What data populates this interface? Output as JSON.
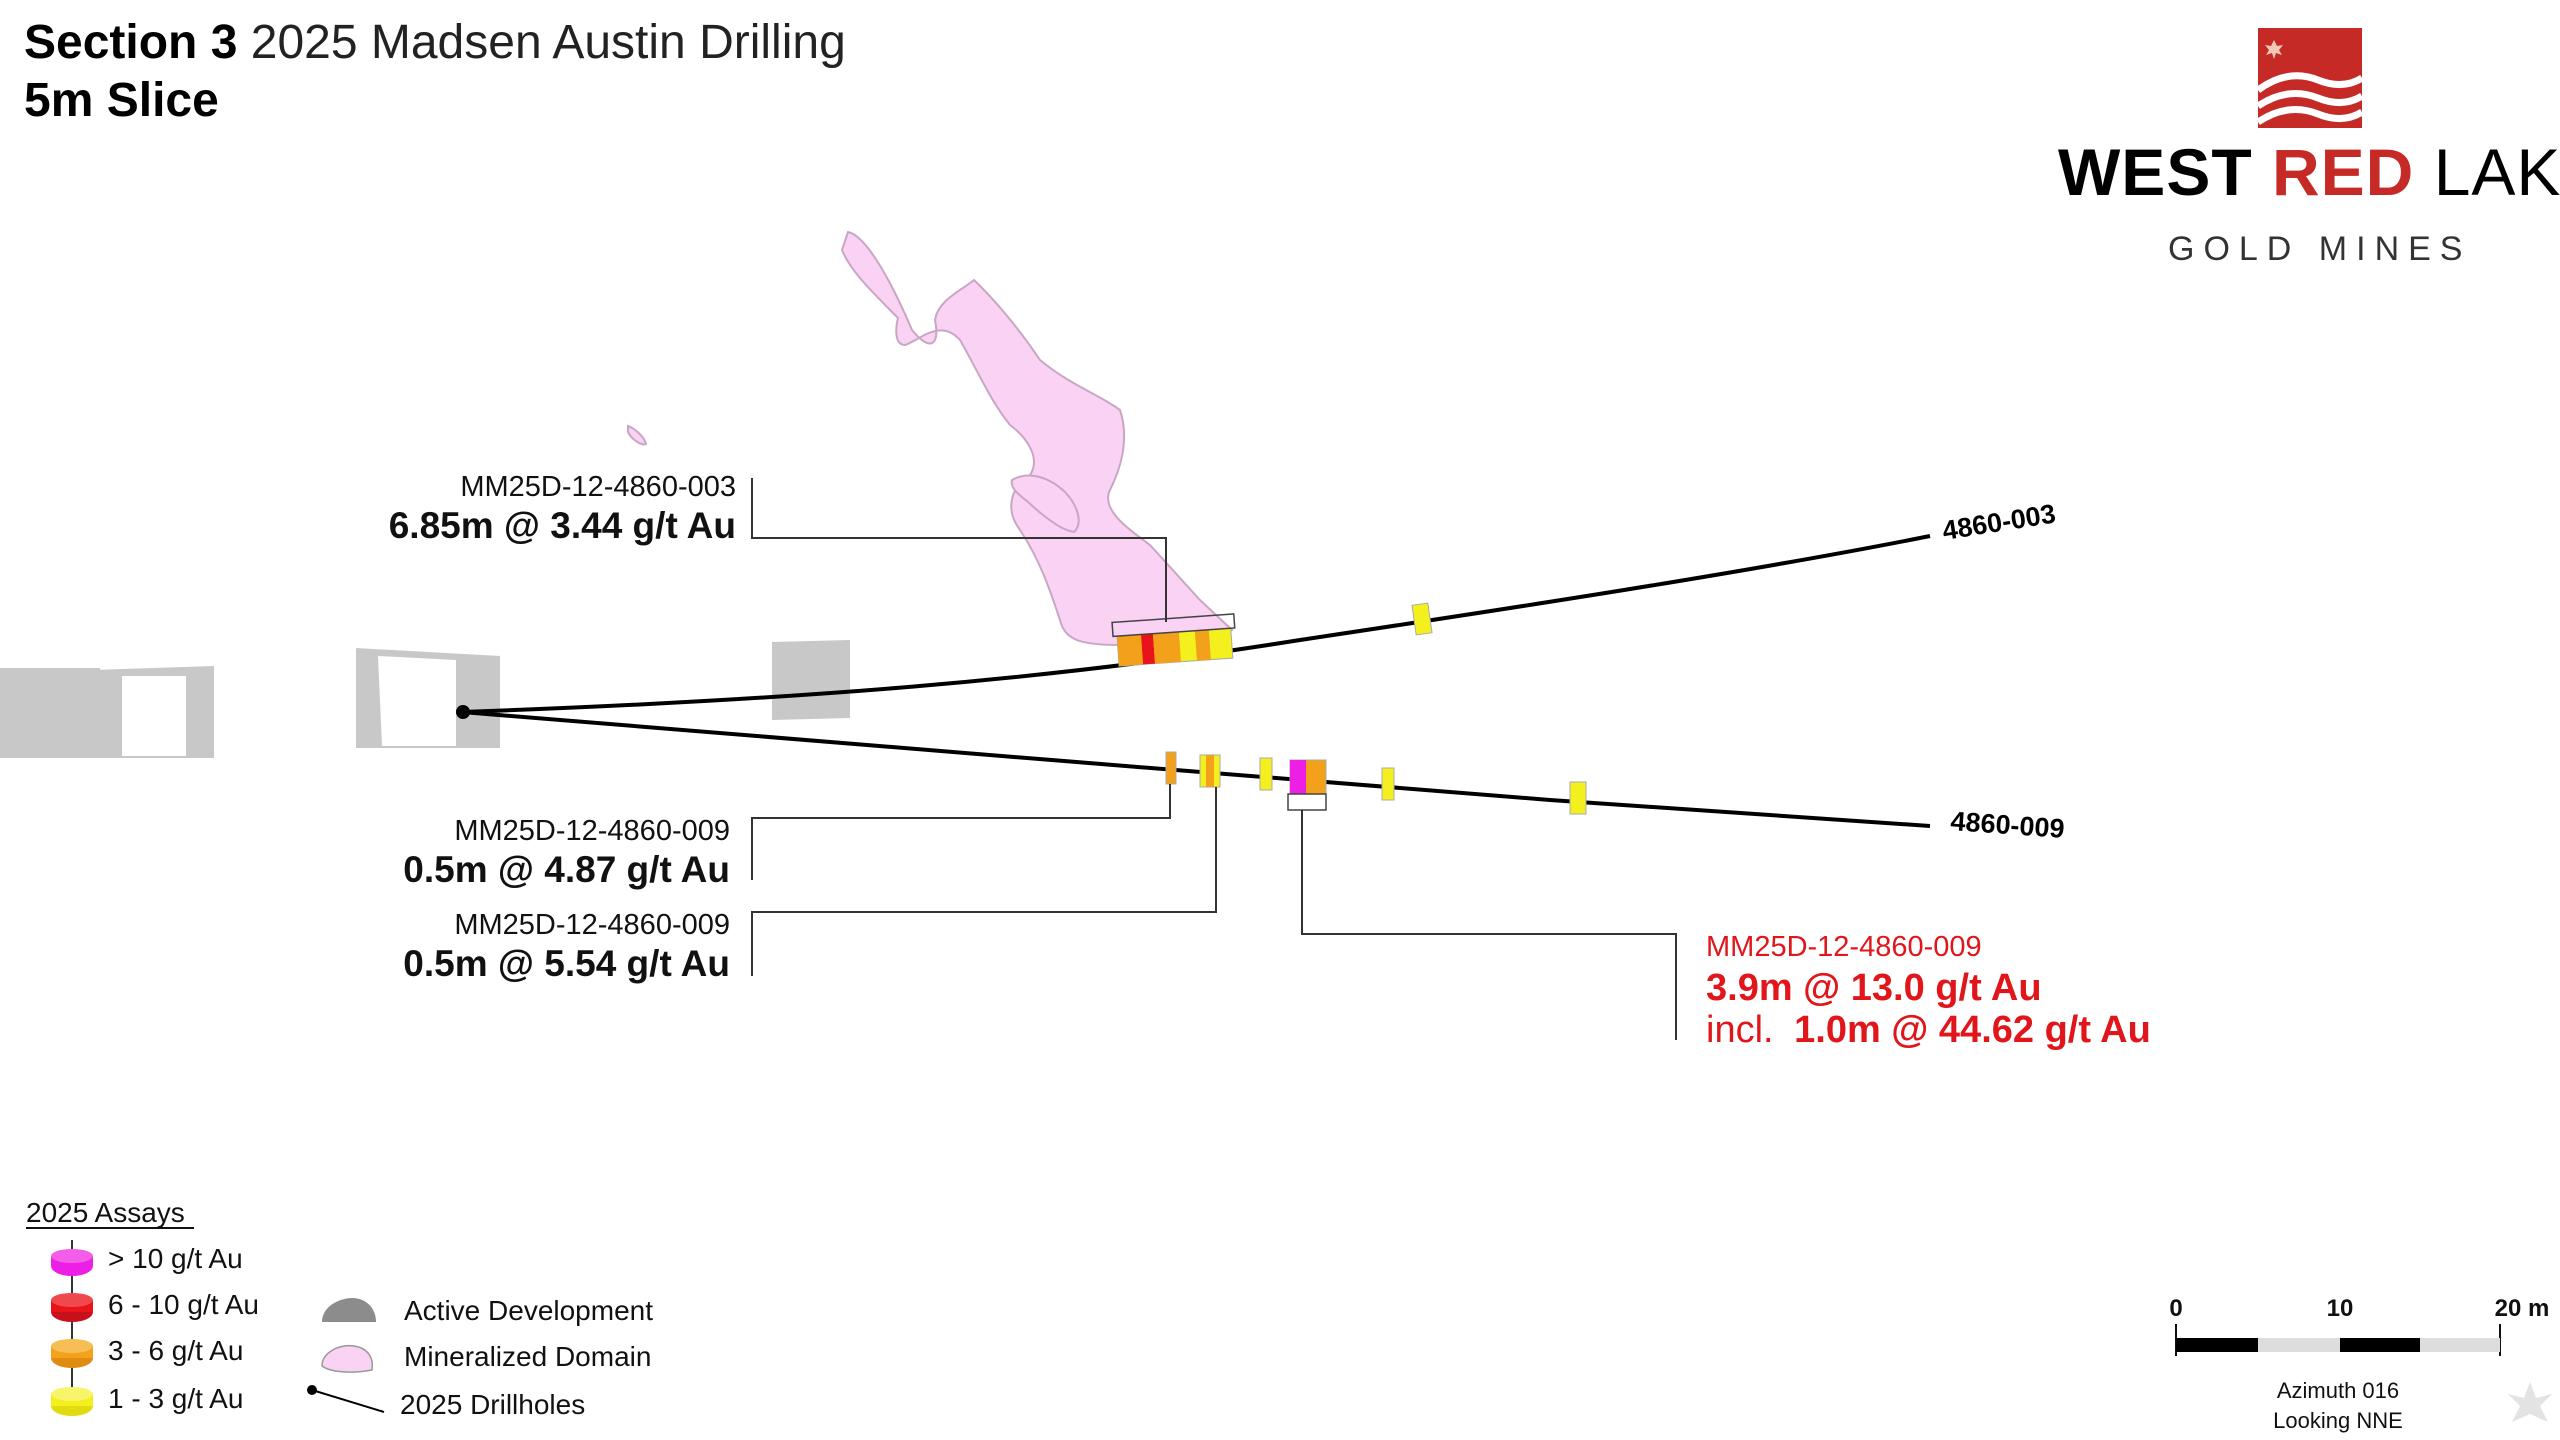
{
  "header": {
    "section_label": "Section 3",
    "title_rest": "2025 Madsen Austin Drilling",
    "subtitle": "5m Slice"
  },
  "logo": {
    "word_west": "WEST",
    "word_red": "RED",
    "word_lake": "LAKE",
    "word_gold": "GOLD MINES",
    "brand_color": "#c62a27"
  },
  "drillholes": [
    {
      "id": "4860-003",
      "label": "4860-003"
    },
    {
      "id": "4860-009",
      "label": "4860-009"
    }
  ],
  "callouts": [
    {
      "hole": "MM25D-12-4860-003",
      "result": "6.85m @ 3.44 g/t Au",
      "color": "#000000"
    },
    {
      "hole": "MM25D-12-4860-009",
      "result": "0.5m @ 4.87 g/t Au",
      "color": "#000000"
    },
    {
      "hole": "MM25D-12-4860-009",
      "result": "0.5m @ 5.54 g/t Au",
      "color": "#000000"
    },
    {
      "hole": "MM25D-12-4860-009",
      "result": "3.9m @ 13.0 g/t Au",
      "incl_prefix": "incl.",
      "incl_result": "1.0m @ 44.62 g/t Au",
      "color": "#e0161b"
    }
  ],
  "legend": {
    "title": "2025 Assays",
    "assays": [
      {
        "label": "> 10 g/t Au",
        "color": "#ee1fe4"
      },
      {
        "label": "6 - 10 g/t Au",
        "color": "#e8141a"
      },
      {
        "label": "3 - 6 g/t Au",
        "color": "#f3a11b"
      },
      {
        "label": "1 - 3 g/t Au",
        "color": "#f4f01e"
      }
    ],
    "features": [
      {
        "label": "Active Development",
        "color": "#8c8c8c"
      },
      {
        "label": "Mineralized Domain",
        "color": "#f9d2f4"
      },
      {
        "label": "2025 Drillholes",
        "color": "#000000"
      }
    ]
  },
  "scale_bar": {
    "ticks": [
      "0",
      "10",
      "20 m"
    ],
    "azimuth": "Azimuth 016",
    "looking": "Looking NNE"
  },
  "colors": {
    "development": "#c8c8c8",
    "domain_fill": "#f9d2f4",
    "domain_stroke": "#c9a6c4"
  }
}
